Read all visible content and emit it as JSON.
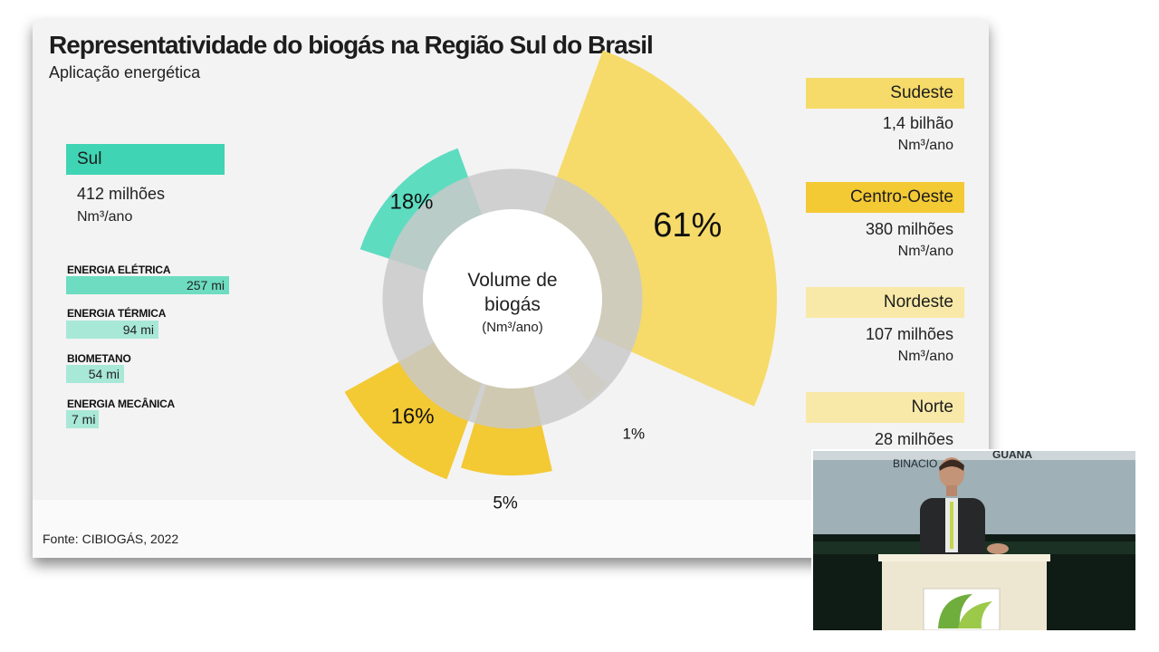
{
  "slide": {
    "title": "Representatividade do biogás na Região Sul do Brasil",
    "subtitle": "Aplicação energética",
    "source": "Fonte: CIBIOGÁS, 2022"
  },
  "sul": {
    "label": "Sul",
    "value": "412 milhões",
    "unit": "Nm³/ano",
    "categories": [
      {
        "label": "ENERGIA ELÉTRICA",
        "value": "257 mi",
        "amount": 257
      },
      {
        "label": "ENERGIA TÉRMICA",
        "value": "94 mi",
        "amount": 94
      },
      {
        "label": "BIOMETANO",
        "value": "54 mi",
        "amount": 54
      },
      {
        "label": "ENERGIA MECÂNICA",
        "value": "7 mi",
        "amount": 7
      }
    ]
  },
  "regions": [
    {
      "label": "Sudeste",
      "value": "1,4 bilhão",
      "unit": "Nm³/ano",
      "color": "#f6db6a"
    },
    {
      "label": "Centro-Oeste",
      "value": "380 milhões",
      "unit": "Nm³/ano",
      "color": "#f3c934"
    },
    {
      "label": "Nordeste",
      "value": "107 milhões",
      "unit": "Nm³/ano",
      "color": "#f8e9a8"
    },
    {
      "label": "Norte",
      "value": "28 milhões",
      "unit": "",
      "color": "#f8e9a8"
    }
  ],
  "chart_data": {
    "type": "pie",
    "center_label_line1": "Volume de",
    "center_label_line2": "biogás",
    "center_label_unit": "(Nm³/ano)",
    "slices": [
      {
        "label": "61%",
        "value": 61,
        "color": "#f6db6a"
      },
      {
        "label": "1%",
        "value": 1,
        "color": "#f8e9a8"
      },
      {
        "label": "5%",
        "value": 5,
        "color": "#f3c934"
      },
      {
        "label": "16%",
        "value": 16,
        "color": "#f3c934"
      },
      {
        "label": "18%",
        "value": 18,
        "color": "#5ddcc0"
      }
    ],
    "ring_color": "#c9c9c9"
  },
  "camera": {
    "banner_text_1": "BINACIO",
    "banner_text_2": "GUANA"
  }
}
